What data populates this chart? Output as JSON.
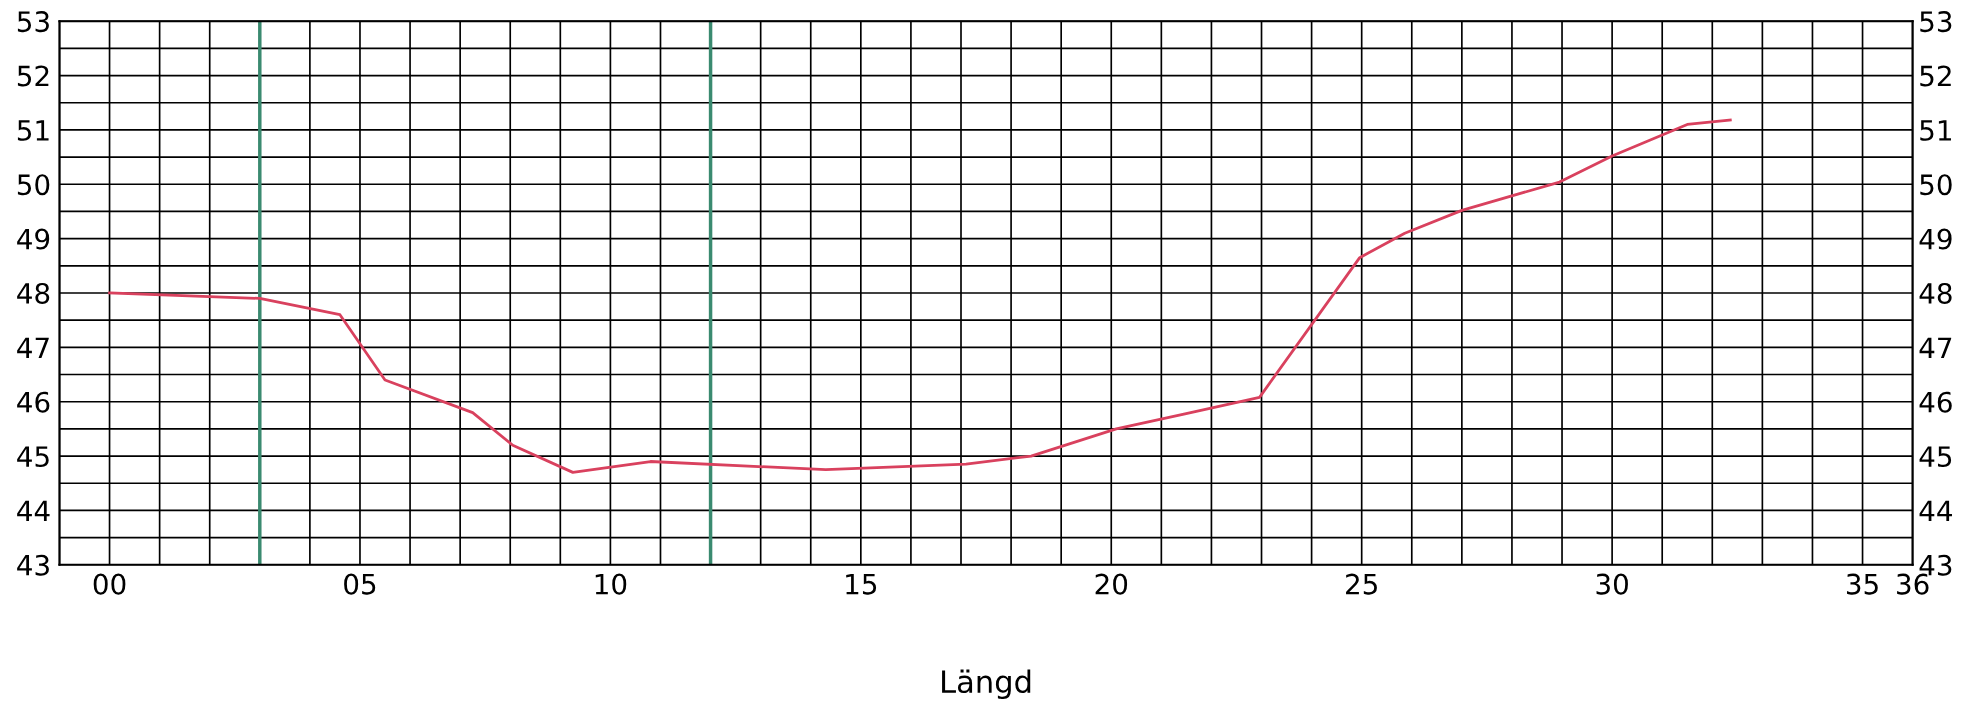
{
  "chart_data": {
    "type": "line",
    "xlabel": "Längd",
    "x": [
      0,
      3.0,
      4.6,
      5.5,
      7.25,
      8.05,
      9.25,
      10.8,
      14.3,
      17.1,
      18.4,
      20.1,
      21.45,
      22.96,
      24.96,
      25.86,
      27.0,
      28.95,
      30.0,
      31.5,
      32.36
    ],
    "series": [
      {
        "color": "#d9415e",
        "values": [
          48.0,
          47.9,
          47.6,
          46.4,
          45.8,
          45.2,
          44.7,
          44.9,
          44.75,
          44.85,
          45.0,
          45.5,
          45.77,
          46.08,
          48.65,
          49.1,
          49.52,
          50.04,
          50.52,
          51.1,
          51.18
        ]
      }
    ],
    "xlim": [
      -1,
      36
    ],
    "xticks": [
      {
        "value": -1,
        "label": null
      },
      {
        "value": 0,
        "label": "00"
      },
      {
        "value": 1,
        "label": null
      },
      {
        "value": 2,
        "label": null
      },
      {
        "value": 4,
        "label": null
      },
      {
        "value": 5,
        "label": "05"
      },
      {
        "value": 6,
        "label": null
      },
      {
        "value": 7,
        "label": null
      },
      {
        "value": 8,
        "label": null
      },
      {
        "value": 9,
        "label": null
      },
      10,
      {
        "value": 11,
        "label": null
      },
      {
        "value": 13,
        "label": null
      },
      {
        "value": 14,
        "label": null
      },
      15,
      {
        "value": 16,
        "label": null
      },
      {
        "value": 17,
        "label": null
      },
      {
        "value": 18,
        "label": null
      },
      {
        "value": 19,
        "label": null
      },
      20,
      {
        "value": 21,
        "label": null
      },
      {
        "value": 22,
        "label": null
      },
      {
        "value": 23,
        "label": null
      },
      {
        "value": 24,
        "label": null
      },
      25,
      {
        "value": 26,
        "label": null
      },
      {
        "value": 27,
        "label": null
      },
      {
        "value": 28,
        "label": null
      },
      {
        "value": 29,
        "label": null
      },
      30,
      {
        "value": 31,
        "label": null
      },
      {
        "value": 32,
        "label": null
      },
      {
        "value": 33,
        "label": null
      },
      {
        "value": 34,
        "label": null
      },
      35,
      36
    ],
    "ylim": [
      43,
      53
    ],
    "yticks": [
      43,
      {
        "value": 43.5,
        "label": null
      },
      44,
      {
        "value": 44.5,
        "label": null
      },
      45,
      {
        "value": 45.5,
        "label": null
      },
      46,
      {
        "value": 46.5,
        "label": null
      },
      47,
      {
        "value": 47.5,
        "label": null
      },
      48,
      {
        "value": 48.5,
        "label": null
      },
      49,
      {
        "value": 49.5,
        "label": null
      },
      50,
      {
        "value": 50.5,
        "label": null
      },
      51,
      {
        "value": 51.5,
        "label": null
      },
      52,
      {
        "value": 52.5,
        "label": null
      },
      53
    ],
    "y2lim": [
      43,
      53
    ],
    "y2ticks": [
      43,
      44,
      45,
      46,
      47,
      48,
      49,
      50,
      51,
      52,
      53
    ],
    "ref_lines": [
      {
        "axis": "x",
        "value": 3,
        "label": null,
        "color": "#3a8a70"
      },
      {
        "axis": "x",
        "value": 12,
        "label": null,
        "color": "#3a8a70"
      }
    ],
    "grid": true,
    "marker": "none",
    "line_style": "solid"
  }
}
